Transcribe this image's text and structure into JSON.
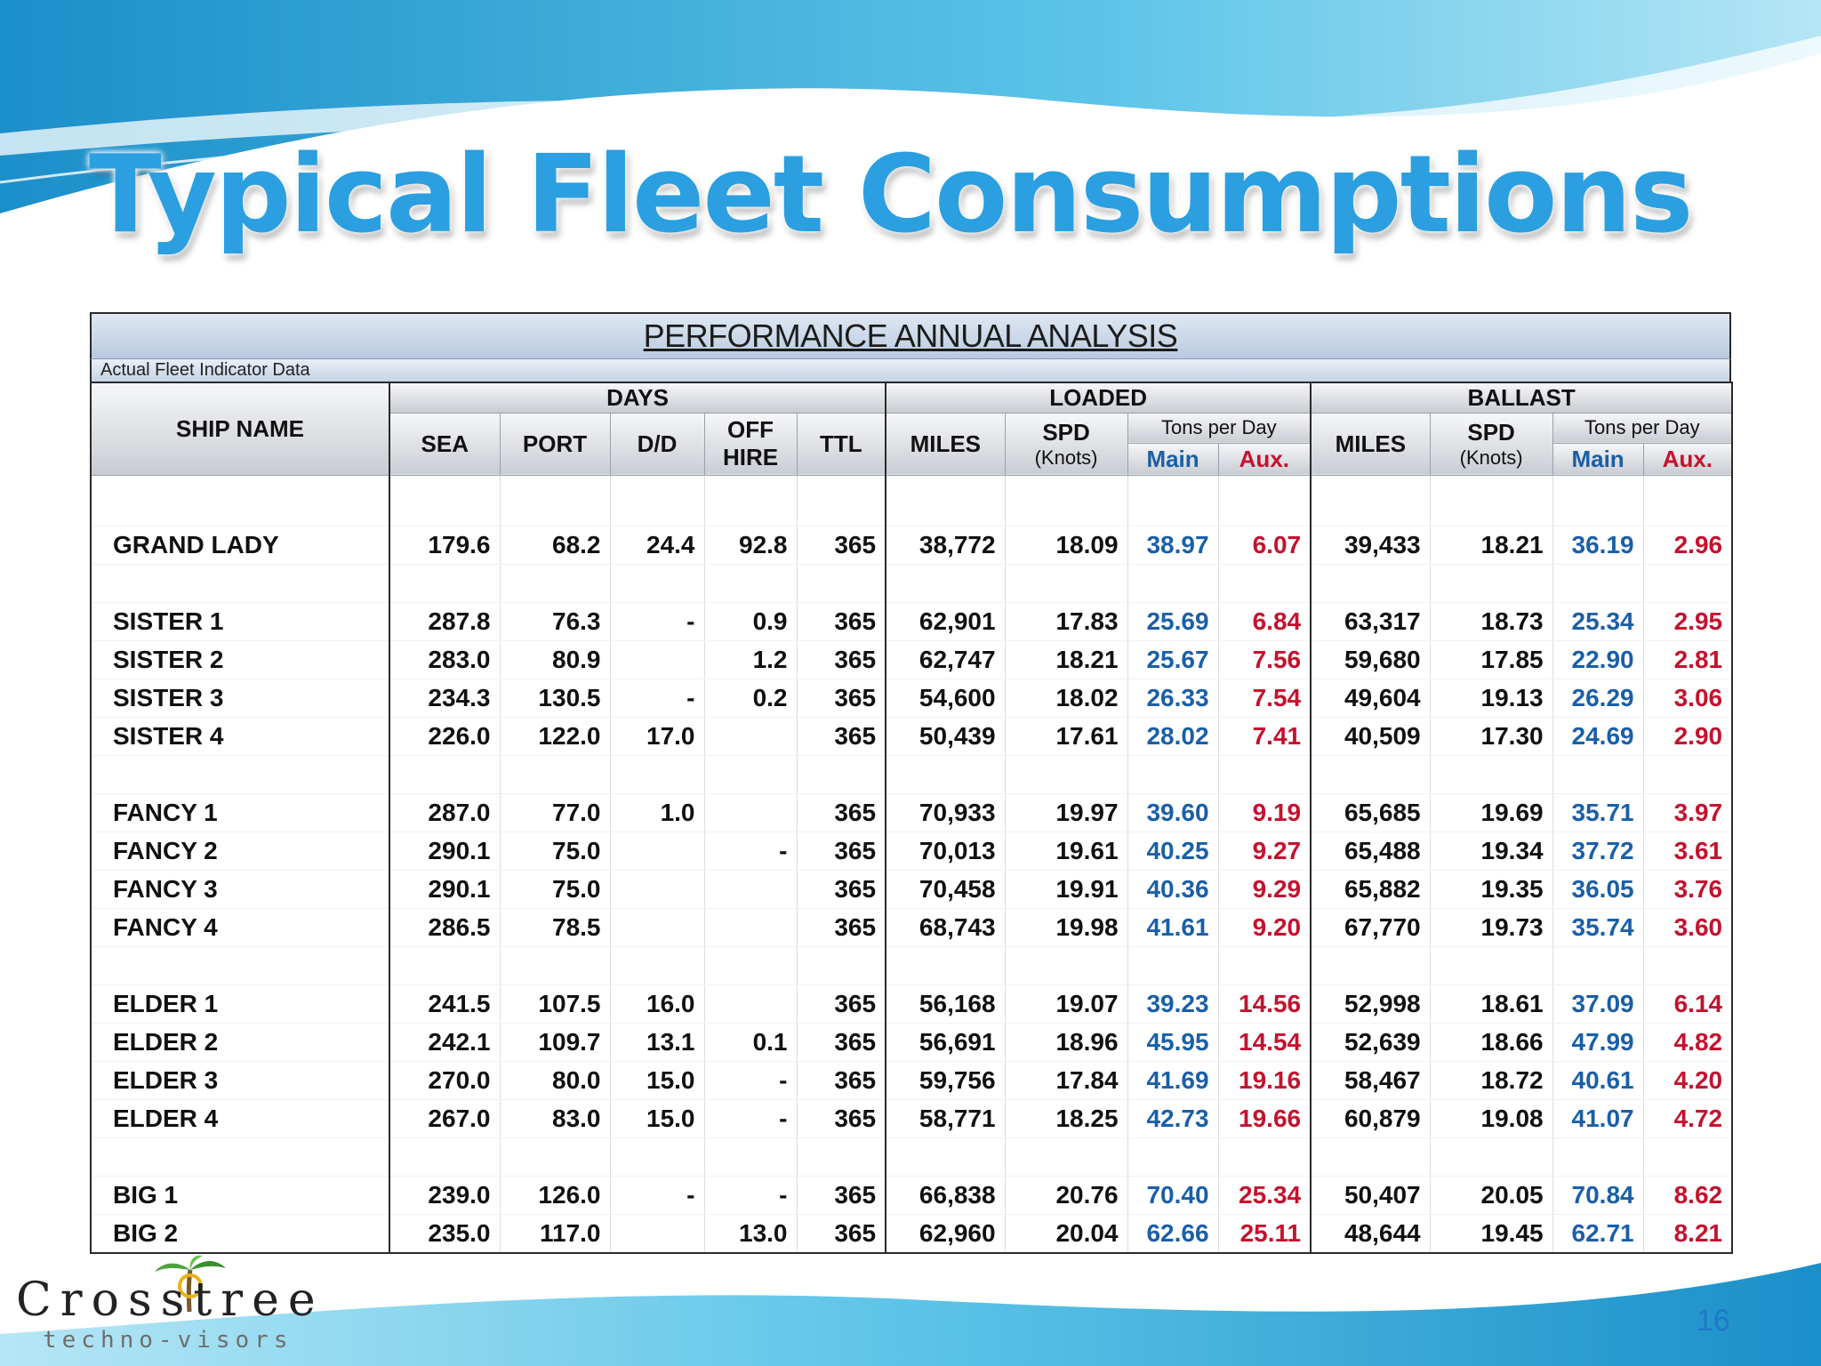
{
  "slide": {
    "title": "Typical Fleet Consumptions",
    "page_number": "16"
  },
  "logo": {
    "name": "Crosstree",
    "tagline": "techno-visors"
  },
  "report": {
    "title": "PERFORMANCE ANNUAL ANALYSIS",
    "subtitle": "Actual Fleet Indicator Data"
  },
  "headers": {
    "ship_name": "SHIP NAME",
    "days": "DAYS",
    "loaded": "LOADED",
    "ballast": "BALLAST",
    "sea": "SEA",
    "port": "PORT",
    "dd": "D/D",
    "off_hire_1": "OFF",
    "off_hire_2": "HIRE",
    "ttl": "TTL",
    "miles": "MILES",
    "spd": "SPD",
    "knots": "(Knots)",
    "tons_per_day": "Tons per Day",
    "main": "Main",
    "aux": "Aux."
  },
  "rows": [
    {
      "name": "GRAND LADY",
      "sea": "179.6",
      "port": "68.2",
      "dd": "24.4",
      "off": "92.8",
      "ttl": "365",
      "l_miles": "38,772",
      "l_spd": "18.09",
      "l_main": "38.97",
      "l_aux": "6.07",
      "b_miles": "39,433",
      "b_spd": "18.21",
      "b_main": "36.19",
      "b_aux": "2.96"
    },
    {
      "name": "SISTER 1",
      "sea": "287.8",
      "port": "76.3",
      "dd": "-",
      "off": "0.9",
      "ttl": "365",
      "l_miles": "62,901",
      "l_spd": "17.83",
      "l_main": "25.69",
      "l_aux": "6.84",
      "b_miles": "63,317",
      "b_spd": "18.73",
      "b_main": "25.34",
      "b_aux": "2.95"
    },
    {
      "name": "SISTER 2",
      "sea": "283.0",
      "port": "80.9",
      "dd": "",
      "off": "1.2",
      "ttl": "365",
      "l_miles": "62,747",
      "l_spd": "18.21",
      "l_main": "25.67",
      "l_aux": "7.56",
      "b_miles": "59,680",
      "b_spd": "17.85",
      "b_main": "22.90",
      "b_aux": "2.81"
    },
    {
      "name": "SISTER 3",
      "sea": "234.3",
      "port": "130.5",
      "dd": "-",
      "off": "0.2",
      "ttl": "365",
      "l_miles": "54,600",
      "l_spd": "18.02",
      "l_main": "26.33",
      "l_aux": "7.54",
      "b_miles": "49,604",
      "b_spd": "19.13",
      "b_main": "26.29",
      "b_aux": "3.06"
    },
    {
      "name": "SISTER 4",
      "sea": "226.0",
      "port": "122.0",
      "dd": "17.0",
      "off": "",
      "ttl": "365",
      "l_miles": "50,439",
      "l_spd": "17.61",
      "l_main": "28.02",
      "l_aux": "7.41",
      "b_miles": "40,509",
      "b_spd": "17.30",
      "b_main": "24.69",
      "b_aux": "2.90"
    },
    {
      "name": "FANCY 1",
      "sea": "287.0",
      "port": "77.0",
      "dd": "1.0",
      "off": "",
      "ttl": "365",
      "l_miles": "70,933",
      "l_spd": "19.97",
      "l_main": "39.60",
      "l_aux": "9.19",
      "b_miles": "65,685",
      "b_spd": "19.69",
      "b_main": "35.71",
      "b_aux": "3.97"
    },
    {
      "name": "FANCY 2",
      "sea": "290.1",
      "port": "75.0",
      "dd": "",
      "off": "-",
      "ttl": "365",
      "l_miles": "70,013",
      "l_spd": "19.61",
      "l_main": "40.25",
      "l_aux": "9.27",
      "b_miles": "65,488",
      "b_spd": "19.34",
      "b_main": "37.72",
      "b_aux": "3.61"
    },
    {
      "name": "FANCY 3",
      "sea": "290.1",
      "port": "75.0",
      "dd": "",
      "off": "",
      "ttl": "365",
      "l_miles": "70,458",
      "l_spd": "19.91",
      "l_main": "40.36",
      "l_aux": "9.29",
      "b_miles": "65,882",
      "b_spd": "19.35",
      "b_main": "36.05",
      "b_aux": "3.76"
    },
    {
      "name": "FANCY 4",
      "sea": "286.5",
      "port": "78.5",
      "dd": "",
      "off": "",
      "ttl": "365",
      "l_miles": "68,743",
      "l_spd": "19.98",
      "l_main": "41.61",
      "l_aux": "9.20",
      "b_miles": "67,770",
      "b_spd": "19.73",
      "b_main": "35.74",
      "b_aux": "3.60"
    },
    {
      "name": "ELDER 1",
      "sea": "241.5",
      "port": "107.5",
      "dd": "16.0",
      "off": "",
      "ttl": "365",
      "l_miles": "56,168",
      "l_spd": "19.07",
      "l_main": "39.23",
      "l_aux": "14.56",
      "b_miles": "52,998",
      "b_spd": "18.61",
      "b_main": "37.09",
      "b_aux": "6.14"
    },
    {
      "name": "ELDER 2",
      "sea": "242.1",
      "port": "109.7",
      "dd": "13.1",
      "off": "0.1",
      "ttl": "365",
      "l_miles": "56,691",
      "l_spd": "18.96",
      "l_main": "45.95",
      "l_aux": "14.54",
      "b_miles": "52,639",
      "b_spd": "18.66",
      "b_main": "47.99",
      "b_aux": "4.82"
    },
    {
      "name": "ELDER 3",
      "sea": "270.0",
      "port": "80.0",
      "dd": "15.0",
      "off": "-",
      "ttl": "365",
      "l_miles": "59,756",
      "l_spd": "17.84",
      "l_main": "41.69",
      "l_aux": "19.16",
      "b_miles": "58,467",
      "b_spd": "18.72",
      "b_main": "40.61",
      "b_aux": "4.20"
    },
    {
      "name": "ELDER 4",
      "sea": "267.0",
      "port": "83.0",
      "dd": "15.0",
      "off": "-",
      "ttl": "365",
      "l_miles": "58,771",
      "l_spd": "18.25",
      "l_main": "42.73",
      "l_aux": "19.66",
      "b_miles": "60,879",
      "b_spd": "19.08",
      "b_main": "41.07",
      "b_aux": "4.72"
    },
    {
      "name": "BIG 1",
      "sea": "239.0",
      "port": "126.0",
      "dd": "-",
      "off": "-",
      "ttl": "365",
      "l_miles": "66,838",
      "l_spd": "20.76",
      "l_main": "70.40",
      "l_aux": "25.34",
      "b_miles": "50,407",
      "b_spd": "20.05",
      "b_main": "70.84",
      "b_aux": "8.62"
    },
    {
      "name": "BIG 2",
      "sea": "235.0",
      "port": "117.0",
      "dd": "",
      "off": "13.0",
      "ttl": "365",
      "l_miles": "62,960",
      "l_spd": "20.04",
      "l_main": "62.66",
      "l_aux": "25.11",
      "b_miles": "48,644",
      "b_spd": "19.45",
      "b_main": "62.71",
      "b_aux": "8.21"
    }
  ],
  "colors": {
    "title": "#2b9fe0",
    "main_values": "#1a5fa8",
    "aux_values": "#c4122e",
    "wave_dark": "#1b8fc9",
    "wave_light": "#8fd6ee"
  }
}
